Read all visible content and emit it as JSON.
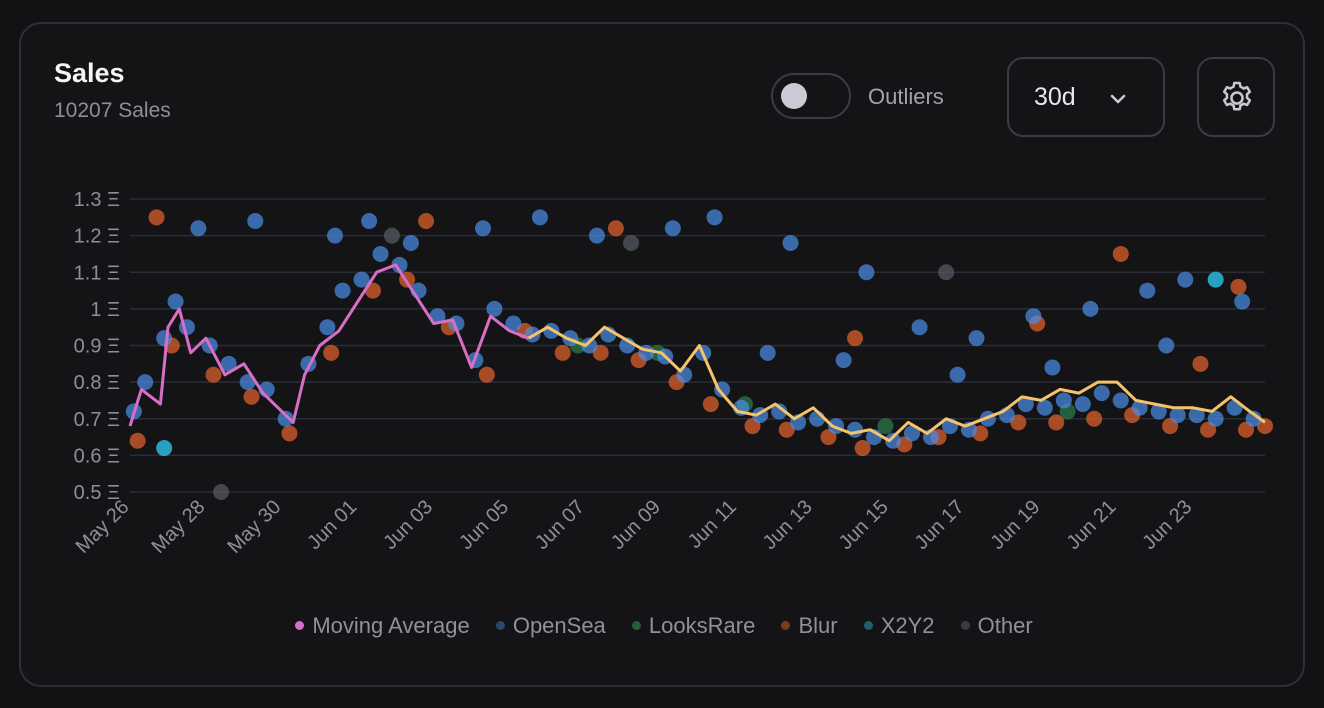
{
  "header": {
    "title": "Sales",
    "subtitle": "10207 Sales",
    "toggle_label": "Outliers",
    "range_label": "30d"
  },
  "icons": {
    "range_chevron": "chevron-down-icon",
    "settings": "gear-icon",
    "toggle": "toggle-switch"
  },
  "colors": {
    "opensea": "#4a8fe8",
    "looksrare": "#2f7d4a",
    "blur": "#e8642c",
    "x2y2": "#2aa8c8",
    "other": "#5a5d66",
    "moving_average_early": "#d86fc6",
    "moving_average_late": "#f5c46a",
    "grid": "#2a2d36",
    "axis_text": "#8d8f99"
  },
  "chart_data": {
    "type": "scatter",
    "currency_symbol": "Ξ",
    "y_ticks": [
      1.3,
      1.2,
      1.1,
      1,
      0.9,
      0.8,
      0.7,
      0.6,
      0.5
    ],
    "y_tick_labels": [
      "1.3 Ξ",
      "1.2 Ξ",
      "1.1 Ξ",
      "1 Ξ",
      "0.9 Ξ",
      "0.8 Ξ",
      "0.7 Ξ",
      "0.6 Ξ",
      "0.5 Ξ"
    ],
    "ylim": [
      0.5,
      1.3
    ],
    "x_tick_labels": [
      "May 26",
      "May 28",
      "May 30",
      "Jun 01",
      "Jun 03",
      "Jun 05",
      "Jun 07",
      "Jun 09",
      "Jun 11",
      "Jun 13",
      "Jun 15",
      "Jun 17",
      "Jun 19",
      "Jun 21",
      "Jun 23"
    ],
    "x_range_days": [
      0,
      29.9
    ],
    "grid": true,
    "legend_position": "bottom",
    "legend": [
      "Moving Average",
      "OpenSea",
      "LooksRare",
      "Blur",
      "X2Y2",
      "Other"
    ],
    "moving_average": {
      "name": "Moving Average",
      "x": [
        0,
        0.3,
        0.8,
        1.0,
        1.3,
        1.6,
        2.0,
        2.5,
        3.0,
        3.5,
        4.0,
        4.3,
        4.6,
        5.0,
        5.5,
        6.0,
        6.5,
        7.0,
        7.5,
        8.0,
        8.5,
        9.0,
        9.5,
        10.0,
        10.5,
        11.0,
        11.5,
        12.0,
        12.5,
        13.0,
        13.5,
        14.0,
        14.5,
        15.0,
        15.5,
        16.0,
        16.5,
        17.0,
        17.5,
        18.0,
        18.5,
        19.0,
        19.5,
        20.0,
        20.5,
        21.0,
        21.5,
        22.0,
        22.5,
        23.0,
        23.5,
        24.0,
        24.5,
        25.0,
        25.5,
        26.0,
        26.5,
        27.0,
        27.5,
        28.0,
        28.5,
        29.0,
        29.5,
        29.9
      ],
      "y": [
        0.68,
        0.78,
        0.74,
        0.95,
        1.0,
        0.88,
        0.92,
        0.82,
        0.85,
        0.77,
        0.72,
        0.69,
        0.82,
        0.9,
        0.94,
        1.02,
        1.1,
        1.12,
        1.04,
        0.96,
        0.97,
        0.84,
        0.98,
        0.94,
        0.92,
        0.95,
        0.92,
        0.9,
        0.95,
        0.92,
        0.89,
        0.88,
        0.83,
        0.9,
        0.78,
        0.72,
        0.71,
        0.74,
        0.7,
        0.73,
        0.68,
        0.66,
        0.67,
        0.64,
        0.69,
        0.66,
        0.7,
        0.68,
        0.7,
        0.72,
        0.76,
        0.75,
        0.78,
        0.77,
        0.8,
        0.8,
        0.75,
        0.74,
        0.73,
        0.73,
        0.72,
        0.76,
        0.72,
        0.69
      ]
    },
    "series": [
      {
        "name": "OpenSea",
        "x": [
          0.1,
          0.4,
          0.9,
          1.2,
          1.5,
          2.1,
          2.6,
          3.1,
          3.6,
          4.1,
          4.7,
          5.2,
          5.6,
          6.1,
          6.6,
          7.1,
          7.6,
          8.1,
          8.6,
          9.1,
          9.6,
          10.1,
          10.6,
          11.1,
          11.6,
          12.1,
          12.6,
          13.1,
          13.6,
          14.1,
          14.6,
          15.1,
          15.6,
          16.1,
          16.6,
          17.1,
          17.6,
          18.1,
          18.6,
          19.1,
          19.6,
          20.1,
          20.6,
          21.1,
          21.6,
          22.1,
          22.6,
          23.1,
          23.6,
          24.1,
          24.6,
          25.1,
          25.6,
          26.1,
          26.6,
          27.1,
          27.6,
          28.1,
          28.6,
          29.1,
          29.6,
          1.8,
          3.3,
          5.4,
          6.3,
          7.4,
          9.3,
          10.8,
          12.3,
          14.3,
          15.4,
          17.4,
          19.4,
          20.8,
          22.3,
          23.8,
          25.3,
          26.8,
          27.8,
          29.3,
          16.8,
          18.8,
          21.8,
          24.3,
          27.3
        ],
        "y": [
          0.72,
          0.8,
          0.92,
          1.02,
          0.95,
          0.9,
          0.85,
          0.8,
          0.78,
          0.7,
          0.85,
          0.95,
          1.05,
          1.08,
          1.15,
          1.12,
          1.05,
          0.98,
          0.96,
          0.86,
          1.0,
          0.96,
          0.93,
          0.94,
          0.92,
          0.9,
          0.93,
          0.9,
          0.88,
          0.87,
          0.82,
          0.88,
          0.78,
          0.73,
          0.71,
          0.72,
          0.69,
          0.7,
          0.68,
          0.67,
          0.65,
          0.64,
          0.66,
          0.65,
          0.68,
          0.67,
          0.7,
          0.71,
          0.74,
          0.73,
          0.75,
          0.74,
          0.77,
          0.75,
          0.73,
          0.72,
          0.71,
          0.71,
          0.7,
          0.73,
          0.7,
          1.22,
          1.24,
          1.2,
          1.24,
          1.18,
          1.22,
          1.25,
          1.2,
          1.22,
          1.25,
          1.18,
          1.1,
          0.95,
          0.92,
          0.98,
          1.0,
          1.05,
          1.08,
          1.02,
          0.88,
          0.86,
          0.82,
          0.84,
          0.9
        ]
      },
      {
        "name": "LooksRare",
        "x": [
          11.8,
          13.9,
          16.2,
          19.9,
          24.7
        ],
        "y": [
          0.9,
          0.88,
          0.74,
          0.68,
          0.72
        ]
      },
      {
        "name": "Blur",
        "x": [
          0.2,
          1.1,
          2.2,
          3.2,
          4.2,
          5.3,
          6.4,
          7.3,
          8.4,
          9.4,
          10.4,
          11.4,
          12.4,
          13.4,
          14.4,
          15.3,
          16.4,
          17.3,
          18.4,
          19.3,
          20.4,
          21.3,
          22.4,
          23.4,
          24.4,
          25.4,
          26.4,
          27.4,
          28.4,
          29.4,
          29.9,
          0.7,
          7.8,
          12.8,
          19.1,
          23.9,
          26.1,
          28.2,
          29.2
        ],
        "y": [
          0.64,
          0.9,
          0.82,
          0.76,
          0.66,
          0.88,
          1.05,
          1.08,
          0.95,
          0.82,
          0.94,
          0.88,
          0.88,
          0.86,
          0.8,
          0.74,
          0.68,
          0.67,
          0.65,
          0.62,
          0.63,
          0.65,
          0.66,
          0.69,
          0.69,
          0.7,
          0.71,
          0.68,
          0.67,
          0.67,
          0.68,
          1.25,
          1.24,
          1.22,
          0.92,
          0.96,
          1.15,
          0.85,
          1.06
        ]
      },
      {
        "name": "X2Y2",
        "x": [
          0.9,
          28.6
        ],
        "y": [
          0.62,
          1.08
        ]
      },
      {
        "name": "Other",
        "x": [
          2.4,
          6.9,
          13.2,
          21.5
        ],
        "y": [
          0.5,
          1.2,
          1.18,
          1.1
        ]
      }
    ]
  }
}
